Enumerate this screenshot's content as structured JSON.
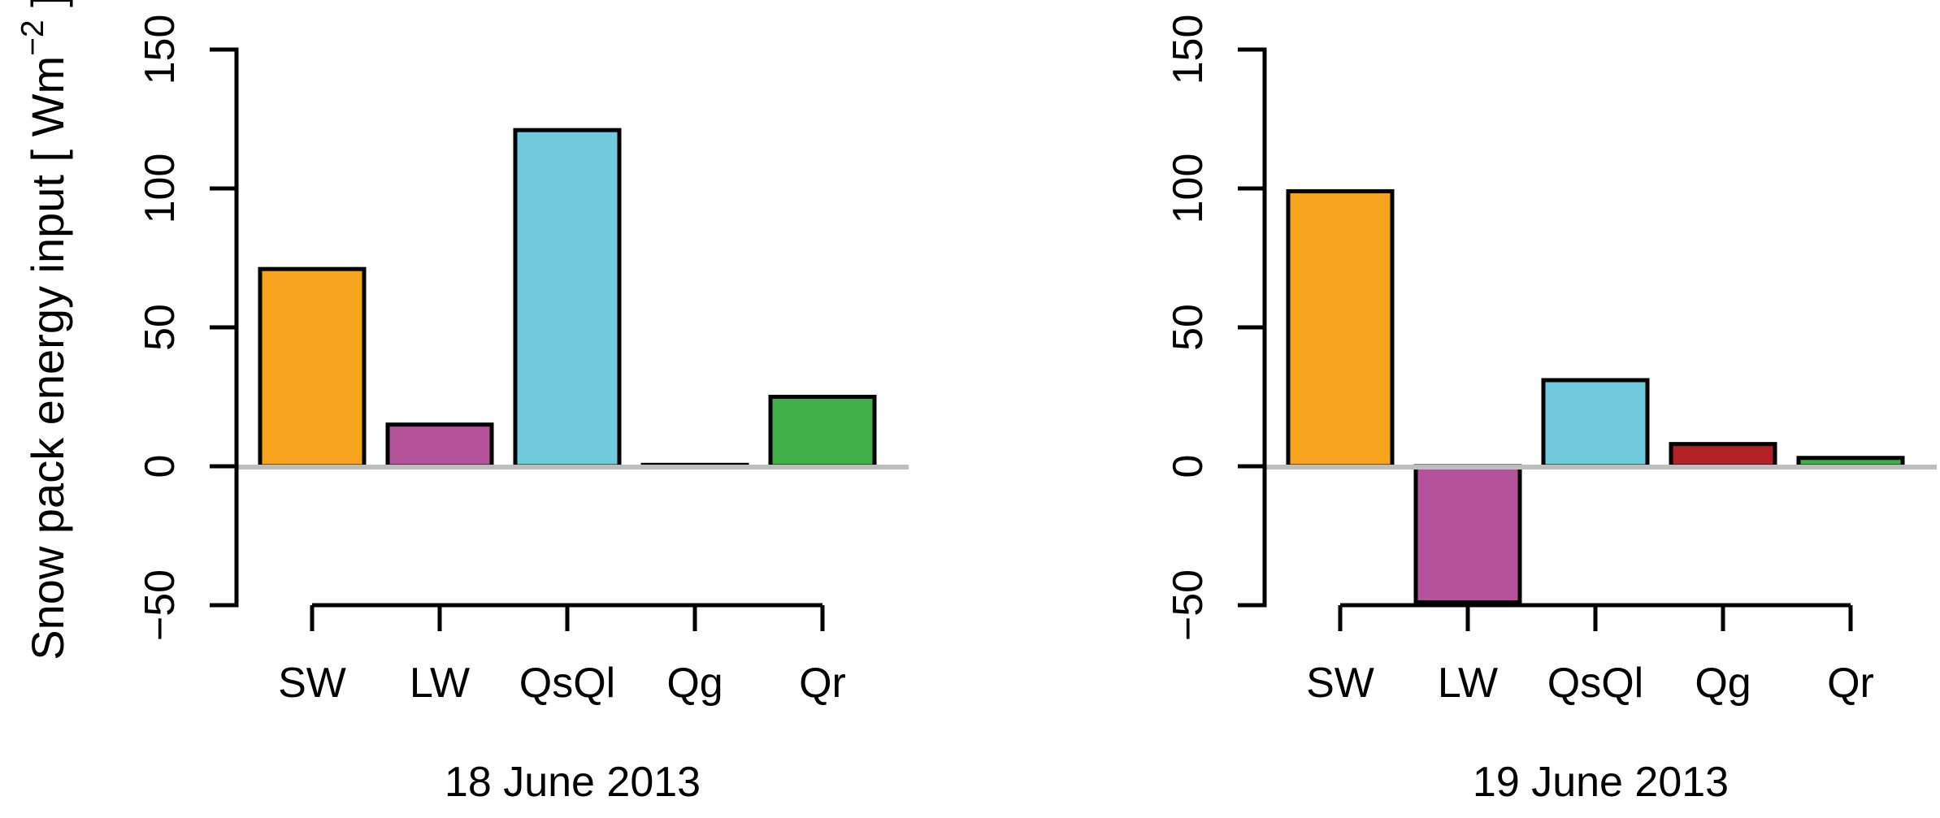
{
  "figure": {
    "background": "#ffffff",
    "ylabel_parts": {
      "pre": "Snow pack energy input [ Wm",
      "sup": "−2",
      "post": " ]"
    }
  },
  "chart_data": [
    {
      "type": "bar",
      "xlabel": "18 June 2013",
      "ylabel": "Snow pack energy input [ Wm−2 ]",
      "categories": [
        "SW",
        "LW",
        "QsQl",
        "Qg",
        "Qr"
      ],
      "values": [
        71,
        15,
        121,
        0.5,
        25
      ],
      "bar_colors": [
        "#F8A31D",
        "#B4539B",
        "#70CADC",
        "#B22126",
        "#41B049"
      ],
      "bar_border_color": "#000000",
      "ylim": [
        -50,
        150
      ],
      "yticks": [
        150,
        100,
        50,
        0,
        -50
      ],
      "ytick_labels": [
        "150",
        "100",
        "50",
        "0",
        "−50"
      ],
      "zero_line": true,
      "zero_line_color": "#BEBEBE",
      "grid": false,
      "legend": false
    },
    {
      "type": "bar",
      "xlabel": "19 June 2013",
      "categories": [
        "SW",
        "LW",
        "QsQl",
        "Qg",
        "Qr"
      ],
      "values": [
        99,
        -49,
        31,
        8,
        3
      ],
      "bar_colors": [
        "#F8A31D",
        "#B4539B",
        "#70CADC",
        "#B22126",
        "#41B049"
      ],
      "bar_border_color": "#000000",
      "ylim": [
        -50,
        150
      ],
      "yticks": [
        150,
        100,
        50,
        0,
        -50
      ],
      "ytick_labels": [
        "150",
        "100",
        "50",
        "0",
        "−50"
      ],
      "zero_line": true,
      "zero_line_color": "#BEBEBE",
      "grid": false,
      "legend": false
    }
  ]
}
